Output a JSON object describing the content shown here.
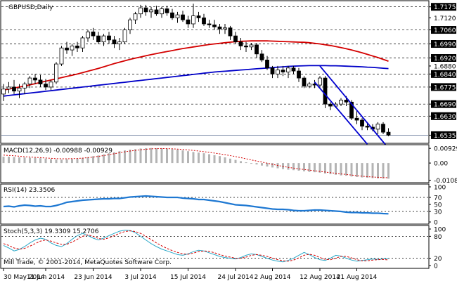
{
  "chart_data": [
    {
      "type": "candlestick",
      "title": "GBPUSD,Daily",
      "price_range": [
        1.6505,
        1.7195
      ],
      "price_ticks": [
        "1.7175",
        "1.7120",
        "1.7060",
        "1.6990",
        "1.6920",
        "1.6880",
        "1.6840",
        "1.6775",
        "1.6690",
        "1.6630",
        "1.6535"
      ],
      "horizontal_levels": [
        1.7175,
        1.706,
        1.699,
        1.692,
        1.684,
        1.6775,
        1.669,
        1.663
      ],
      "current_price": 1.6535,
      "candles": [
        {
          "o": 1.674,
          "h": 1.679,
          "l": 1.6705,
          "c": 1.6765
        },
        {
          "o": 1.6765,
          "h": 1.68,
          "l": 1.6745,
          "c": 1.6775
        },
        {
          "o": 1.6775,
          "h": 1.681,
          "l": 1.674,
          "c": 1.6755
        },
        {
          "o": 1.6755,
          "h": 1.679,
          "l": 1.672,
          "c": 1.677
        },
        {
          "o": 1.677,
          "h": 1.68,
          "l": 1.674,
          "c": 1.679
        },
        {
          "o": 1.679,
          "h": 1.683,
          "l": 1.677,
          "c": 1.682
        },
        {
          "o": 1.682,
          "h": 1.684,
          "l": 1.679,
          "c": 1.681
        },
        {
          "o": 1.681,
          "h": 1.6835,
          "l": 1.6775,
          "c": 1.679
        },
        {
          "o": 1.679,
          "h": 1.6815,
          "l": 1.676,
          "c": 1.6775
        },
        {
          "o": 1.6775,
          "h": 1.681,
          "l": 1.676,
          "c": 1.68
        },
        {
          "o": 1.68,
          "h": 1.69,
          "l": 1.679,
          "c": 1.689
        },
        {
          "o": 1.689,
          "h": 1.698,
          "l": 1.688,
          "c": 1.697
        },
        {
          "o": 1.697,
          "h": 1.7,
          "l": 1.694,
          "c": 1.696
        },
        {
          "o": 1.696,
          "h": 1.699,
          "l": 1.693,
          "c": 1.698
        },
        {
          "o": 1.698,
          "h": 1.7,
          "l": 1.695,
          "c": 1.697
        },
        {
          "o": 1.697,
          "h": 1.703,
          "l": 1.695,
          "c": 1.702
        },
        {
          "o": 1.702,
          "h": 1.706,
          "l": 1.7,
          "c": 1.705
        },
        {
          "o": 1.705,
          "h": 1.707,
          "l": 1.701,
          "c": 1.703
        },
        {
          "o": 1.703,
          "h": 1.705,
          "l": 1.699,
          "c": 1.7
        },
        {
          "o": 1.7,
          "h": 1.704,
          "l": 1.698,
          "c": 1.703
        },
        {
          "o": 1.703,
          "h": 1.705,
          "l": 1.699,
          "c": 1.701
        },
        {
          "o": 1.701,
          "h": 1.703,
          "l": 1.697,
          "c": 1.699
        },
        {
          "o": 1.699,
          "h": 1.702,
          "l": 1.696,
          "c": 1.7
        },
        {
          "o": 1.7,
          "h": 1.707,
          "l": 1.699,
          "c": 1.706
        },
        {
          "o": 1.706,
          "h": 1.712,
          "l": 1.704,
          "c": 1.711
        },
        {
          "o": 1.711,
          "h": 1.715,
          "l": 1.709,
          "c": 1.714
        },
        {
          "o": 1.714,
          "h": 1.7185,
          "l": 1.712,
          "c": 1.717
        },
        {
          "o": 1.717,
          "h": 1.7185,
          "l": 1.713,
          "c": 1.715
        },
        {
          "o": 1.715,
          "h": 1.7175,
          "l": 1.712,
          "c": 1.716
        },
        {
          "o": 1.716,
          "h": 1.718,
          "l": 1.713,
          "c": 1.714
        },
        {
          "o": 1.714,
          "h": 1.7175,
          "l": 1.712,
          "c": 1.7165
        },
        {
          "o": 1.7165,
          "h": 1.718,
          "l": 1.713,
          "c": 1.7145
        },
        {
          "o": 1.7145,
          "h": 1.7165,
          "l": 1.711,
          "c": 1.712
        },
        {
          "o": 1.712,
          "h": 1.715,
          "l": 1.7095,
          "c": 1.7135
        },
        {
          "o": 1.7135,
          "h": 1.7155,
          "l": 1.71,
          "c": 1.711
        },
        {
          "o": 1.711,
          "h": 1.713,
          "l": 1.707,
          "c": 1.709
        },
        {
          "o": 1.709,
          "h": 1.719,
          "l": 1.707,
          "c": 1.713
        },
        {
          "o": 1.713,
          "h": 1.715,
          "l": 1.71,
          "c": 1.712
        },
        {
          "o": 1.712,
          "h": 1.714,
          "l": 1.708,
          "c": 1.709
        },
        {
          "o": 1.709,
          "h": 1.711,
          "l": 1.707,
          "c": 1.7085
        },
        {
          "o": 1.7085,
          "h": 1.711,
          "l": 1.706,
          "c": 1.7075
        },
        {
          "o": 1.7075,
          "h": 1.709,
          "l": 1.704,
          "c": 1.7065
        },
        {
          "o": 1.7065,
          "h": 1.709,
          "l": 1.704,
          "c": 1.707
        },
        {
          "o": 1.707,
          "h": 1.708,
          "l": 1.701,
          "c": 1.703
        },
        {
          "o": 1.703,
          "h": 1.705,
          "l": 1.699,
          "c": 1.7
        },
        {
          "o": 1.7,
          "h": 1.702,
          "l": 1.696,
          "c": 1.698
        },
        {
          "o": 1.698,
          "h": 1.7,
          "l": 1.695,
          "c": 1.6975
        },
        {
          "o": 1.6975,
          "h": 1.6995,
          "l": 1.696,
          "c": 1.6985
        },
        {
          "o": 1.6985,
          "h": 1.6995,
          "l": 1.692,
          "c": 1.694
        },
        {
          "o": 1.694,
          "h": 1.696,
          "l": 1.69,
          "c": 1.691
        },
        {
          "o": 1.691,
          "h": 1.693,
          "l": 1.686,
          "c": 1.687
        },
        {
          "o": 1.687,
          "h": 1.688,
          "l": 1.682,
          "c": 1.684
        },
        {
          "o": 1.684,
          "h": 1.688,
          "l": 1.682,
          "c": 1.686
        },
        {
          "o": 1.686,
          "h": 1.688,
          "l": 1.683,
          "c": 1.685
        },
        {
          "o": 1.685,
          "h": 1.688,
          "l": 1.682,
          "c": 1.687
        },
        {
          "o": 1.687,
          "h": 1.688,
          "l": 1.684,
          "c": 1.6855
        },
        {
          "o": 1.6855,
          "h": 1.687,
          "l": 1.68,
          "c": 1.682
        },
        {
          "o": 1.682,
          "h": 1.683,
          "l": 1.677,
          "c": 1.678
        },
        {
          "o": 1.678,
          "h": 1.68,
          "l": 1.677,
          "c": 1.679
        },
        {
          "o": 1.679,
          "h": 1.681,
          "l": 1.677,
          "c": 1.6785
        },
        {
          "o": 1.6785,
          "h": 1.683,
          "l": 1.677,
          "c": 1.682
        },
        {
          "o": 1.682,
          "h": 1.683,
          "l": 1.667,
          "c": 1.669
        },
        {
          "o": 1.669,
          "h": 1.67,
          "l": 1.666,
          "c": 1.668
        },
        {
          "o": 1.668,
          "h": 1.67,
          "l": 1.667,
          "c": 1.669
        },
        {
          "o": 1.669,
          "h": 1.672,
          "l": 1.668,
          "c": 1.671
        },
        {
          "o": 1.671,
          "h": 1.673,
          "l": 1.668,
          "c": 1.67
        },
        {
          "o": 1.67,
          "h": 1.671,
          "l": 1.661,
          "c": 1.662
        },
        {
          "o": 1.662,
          "h": 1.666,
          "l": 1.659,
          "c": 1.661
        },
        {
          "o": 1.661,
          "h": 1.662,
          "l": 1.656,
          "c": 1.658
        },
        {
          "o": 1.658,
          "h": 1.66,
          "l": 1.656,
          "c": 1.6575
        },
        {
          "o": 1.6575,
          "h": 1.659,
          "l": 1.6555,
          "c": 1.6565
        },
        {
          "o": 1.6565,
          "h": 1.66,
          "l": 1.654,
          "c": 1.659
        },
        {
          "o": 1.659,
          "h": 1.66,
          "l": 1.654,
          "c": 1.655
        },
        {
          "o": 1.655,
          "h": 1.657,
          "l": 1.653,
          "c": 1.6535
        }
      ],
      "ma_slow": [
        1.673,
        1.6733,
        1.6736,
        1.6739,
        1.6742,
        1.6745,
        1.6748,
        1.6751,
        1.6754,
        1.6757,
        1.676,
        1.6763,
        1.6766,
        1.6769,
        1.6772,
        1.6775,
        1.6778,
        1.6781,
        1.6784,
        1.6787,
        1.679,
        1.6793,
        1.6796,
        1.6799,
        1.6802,
        1.6805,
        1.6808,
        1.6811,
        1.6814,
        1.6817,
        1.682,
        1.6823,
        1.6826,
        1.6829,
        1.6832,
        1.6835,
        1.6838,
        1.6841,
        1.6844,
        1.6847,
        1.685,
        1.6852,
        1.6854,
        1.6856,
        1.6858,
        1.686,
        1.6862,
        1.6864,
        1.6866,
        1.6868,
        1.687,
        1.6872,
        1.6874,
        1.6876,
        1.6878,
        1.6879,
        1.688,
        1.6881,
        1.6882,
        1.6882,
        1.6882,
        1.6882,
        1.6881,
        1.6881,
        1.688,
        1.6879,
        1.6878,
        1.6877,
        1.6876,
        1.6874,
        1.6873,
        1.6871,
        1.6869,
        1.6867
      ],
      "ma_fast": [
        1.676,
        1.6765,
        1.677,
        1.6775,
        1.678,
        1.6786,
        1.6792,
        1.6798,
        1.6804,
        1.681,
        1.6816,
        1.6822,
        1.6828,
        1.6834,
        1.684,
        1.6847,
        1.6854,
        1.6861,
        1.6868,
        1.6876,
        1.6884,
        1.6892,
        1.6899,
        1.6906,
        1.6913,
        1.6919,
        1.6925,
        1.6931,
        1.6937,
        1.6942,
        1.6947,
        1.6952,
        1.6957,
        1.6962,
        1.6967,
        1.6971,
        1.6975,
        1.6979,
        1.6983,
        1.6987,
        1.699,
        1.6993,
        1.6996,
        1.6999,
        1.7001,
        1.7003,
        1.7004,
        1.7005,
        1.7005,
        1.7005,
        1.7005,
        1.7004,
        1.7003,
        1.7002,
        1.7001,
        1.7,
        1.6999,
        1.6998,
        1.6996,
        1.6993,
        1.699,
        1.6986,
        1.6982,
        1.6977,
        1.6972,
        1.6966,
        1.696,
        1.6953,
        1.6946,
        1.6938,
        1.693,
        1.6922,
        1.6913,
        1.6904
      ],
      "channel_upper": [
        {
          "i": 60,
          "p": 1.688
        },
        {
          "i": 73,
          "p": 1.647
        }
      ],
      "channel_lower": [
        {
          "i": 59,
          "p": 1.68
        },
        {
          "i": 69,
          "p": 1.649
        }
      ],
      "x_tick_labels": [
        {
          "i": 0,
          "label": "30 May 2014"
        },
        {
          "i": 8,
          "label": "11 Jun 2014"
        },
        {
          "i": 17,
          "label": "23 Jun 2014"
        },
        {
          "i": 26,
          "label": "3 Jul 2014"
        },
        {
          "i": 35,
          "label": "15 Jul 2014"
        },
        {
          "i": 44,
          "label": "24 Jul 2014"
        },
        {
          "i": 51,
          "label": "2 Aug 2014"
        },
        {
          "i": 60,
          "label": "12 Aug 2014"
        },
        {
          "i": 67,
          "label": "21 Aug 2014"
        }
      ],
      "watermark": "Mill Trade, © 2001-2014, MetaQuotes Software Corp."
    },
    {
      "type": "bar",
      "title": "MACD(12,26,9) -0.00988 -0.00929",
      "ylim": [
        -0.0115,
        0.0107
      ],
      "ticks": [
        "0.00929",
        "0.00",
        "-0.01082"
      ],
      "values": [
        0.004,
        0.004,
        0.0038,
        0.0036,
        0.0035,
        0.0034,
        0.0033,
        0.0031,
        0.0028,
        0.0025,
        0.0022,
        0.0022,
        0.0024,
        0.0026,
        0.0028,
        0.0032,
        0.0037,
        0.0043,
        0.0048,
        0.0055,
        0.0062,
        0.0068,
        0.0075,
        0.008,
        0.0085,
        0.0088,
        0.0092,
        0.0094,
        0.0095,
        0.0094,
        0.0093,
        0.0091,
        0.0088,
        0.0085,
        0.008,
        0.0075,
        0.007,
        0.0066,
        0.0062,
        0.0056,
        0.005,
        0.0044,
        0.0036,
        0.0028,
        0.002,
        0.0012,
        0.0005,
        -0.0002,
        -0.0009,
        -0.0016,
        -0.0022,
        -0.0028,
        -0.0033,
        -0.0038,
        -0.0042,
        -0.0045,
        -0.0048,
        -0.0052,
        -0.0056,
        -0.0058,
        -0.0061,
        -0.0066,
        -0.007,
        -0.0074,
        -0.0078,
        -0.008,
        -0.0085,
        -0.0088,
        -0.0091,
        -0.0093,
        -0.0095,
        -0.0097,
        -0.0098,
        -0.0099
      ],
      "signal": [
        0.005,
        0.0048,
        0.0046,
        0.0043,
        0.004,
        0.0038,
        0.0036,
        0.0034,
        0.0032,
        0.003,
        0.0028,
        0.0027,
        0.0027,
        0.0028,
        0.0029,
        0.0031,
        0.0034,
        0.0038,
        0.0042,
        0.0047,
        0.0053,
        0.0059,
        0.0065,
        0.0071,
        0.0076,
        0.008,
        0.0084,
        0.0087,
        0.009,
        0.0091,
        0.0092,
        0.0091,
        0.009,
        0.0088,
        0.0086,
        0.0083,
        0.008,
        0.0076,
        0.0072,
        0.0068,
        0.0063,
        0.0058,
        0.0053,
        0.0047,
        0.0041,
        0.0034,
        0.0027,
        0.002,
        0.0013,
        0.0006,
        -0.0001,
        -0.0008,
        -0.0015,
        -0.0021,
        -0.0027,
        -0.0032,
        -0.0037,
        -0.0041,
        -0.0045,
        -0.0049,
        -0.0053,
        -0.0057,
        -0.0061,
        -0.0065,
        -0.0069,
        -0.0072,
        -0.0076,
        -0.008,
        -0.0083,
        -0.0086,
        -0.0088,
        -0.009,
        -0.0092,
        -0.0093
      ]
    },
    {
      "type": "line",
      "title": "RSI(14) 23.3506",
      "ylim": [
        0,
        100
      ],
      "ticks": [
        "100",
        "70",
        "50",
        "30",
        "0"
      ],
      "levels": [
        70,
        30
      ],
      "values": [
        44,
        45,
        43,
        46,
        48,
        47,
        45,
        46,
        44,
        44,
        47,
        51,
        56,
        58,
        60,
        62,
        63,
        64,
        65,
        66,
        66,
        67,
        67,
        69,
        71,
        72,
        73,
        74,
        73,
        72,
        71,
        70,
        70,
        70,
        68,
        67,
        66,
        64,
        64,
        62,
        60,
        58,
        55,
        52,
        49,
        48,
        47,
        45,
        43,
        41,
        39,
        37,
        36,
        36,
        35,
        33,
        32,
        32,
        33,
        34,
        34,
        33,
        32,
        31,
        30,
        28,
        27,
        27,
        26,
        26,
        25,
        25,
        24,
        23.35
      ]
    },
    {
      "type": "line",
      "title": "Stoch(5,3,3) 19.3309 15.2706",
      "ylim": [
        0,
        100
      ],
      "ticks": [
        "100",
        "80",
        "20",
        "0"
      ],
      "levels": [
        80,
        20
      ],
      "main": [
        55,
        48,
        40,
        44,
        52,
        62,
        70,
        75,
        72,
        62,
        55,
        52,
        60,
        72,
        82,
        88,
        82,
        75,
        70,
        75,
        82,
        88,
        94,
        97,
        96,
        90,
        80,
        70,
        60,
        52,
        45,
        40,
        35,
        30,
        28,
        32,
        38,
        42,
        40,
        35,
        30,
        25,
        22,
        20,
        18,
        22,
        28,
        32,
        30,
        25,
        20,
        15,
        12,
        10,
        14,
        20,
        28,
        36,
        30,
        22,
        16,
        14,
        20,
        28,
        26,
        20,
        15,
        12,
        14,
        16,
        18,
        17,
        18,
        19.33
      ],
      "signal": [
        60,
        55,
        48,
        45,
        47,
        53,
        60,
        67,
        70,
        67,
        62,
        58,
        58,
        64,
        72,
        80,
        84,
        80,
        74,
        72,
        76,
        82,
        88,
        93,
        95,
        93,
        88,
        80,
        71,
        62,
        54,
        47,
        41,
        36,
        32,
        31,
        34,
        38,
        40,
        39,
        35,
        30,
        26,
        23,
        20,
        20,
        23,
        28,
        30,
        28,
        25,
        20,
        16,
        13,
        12,
        15,
        21,
        28,
        31,
        28,
        22,
        17,
        16,
        20,
        25,
        25,
        21,
        16,
        13,
        13,
        15,
        16,
        17,
        15.27
      ]
    }
  ]
}
